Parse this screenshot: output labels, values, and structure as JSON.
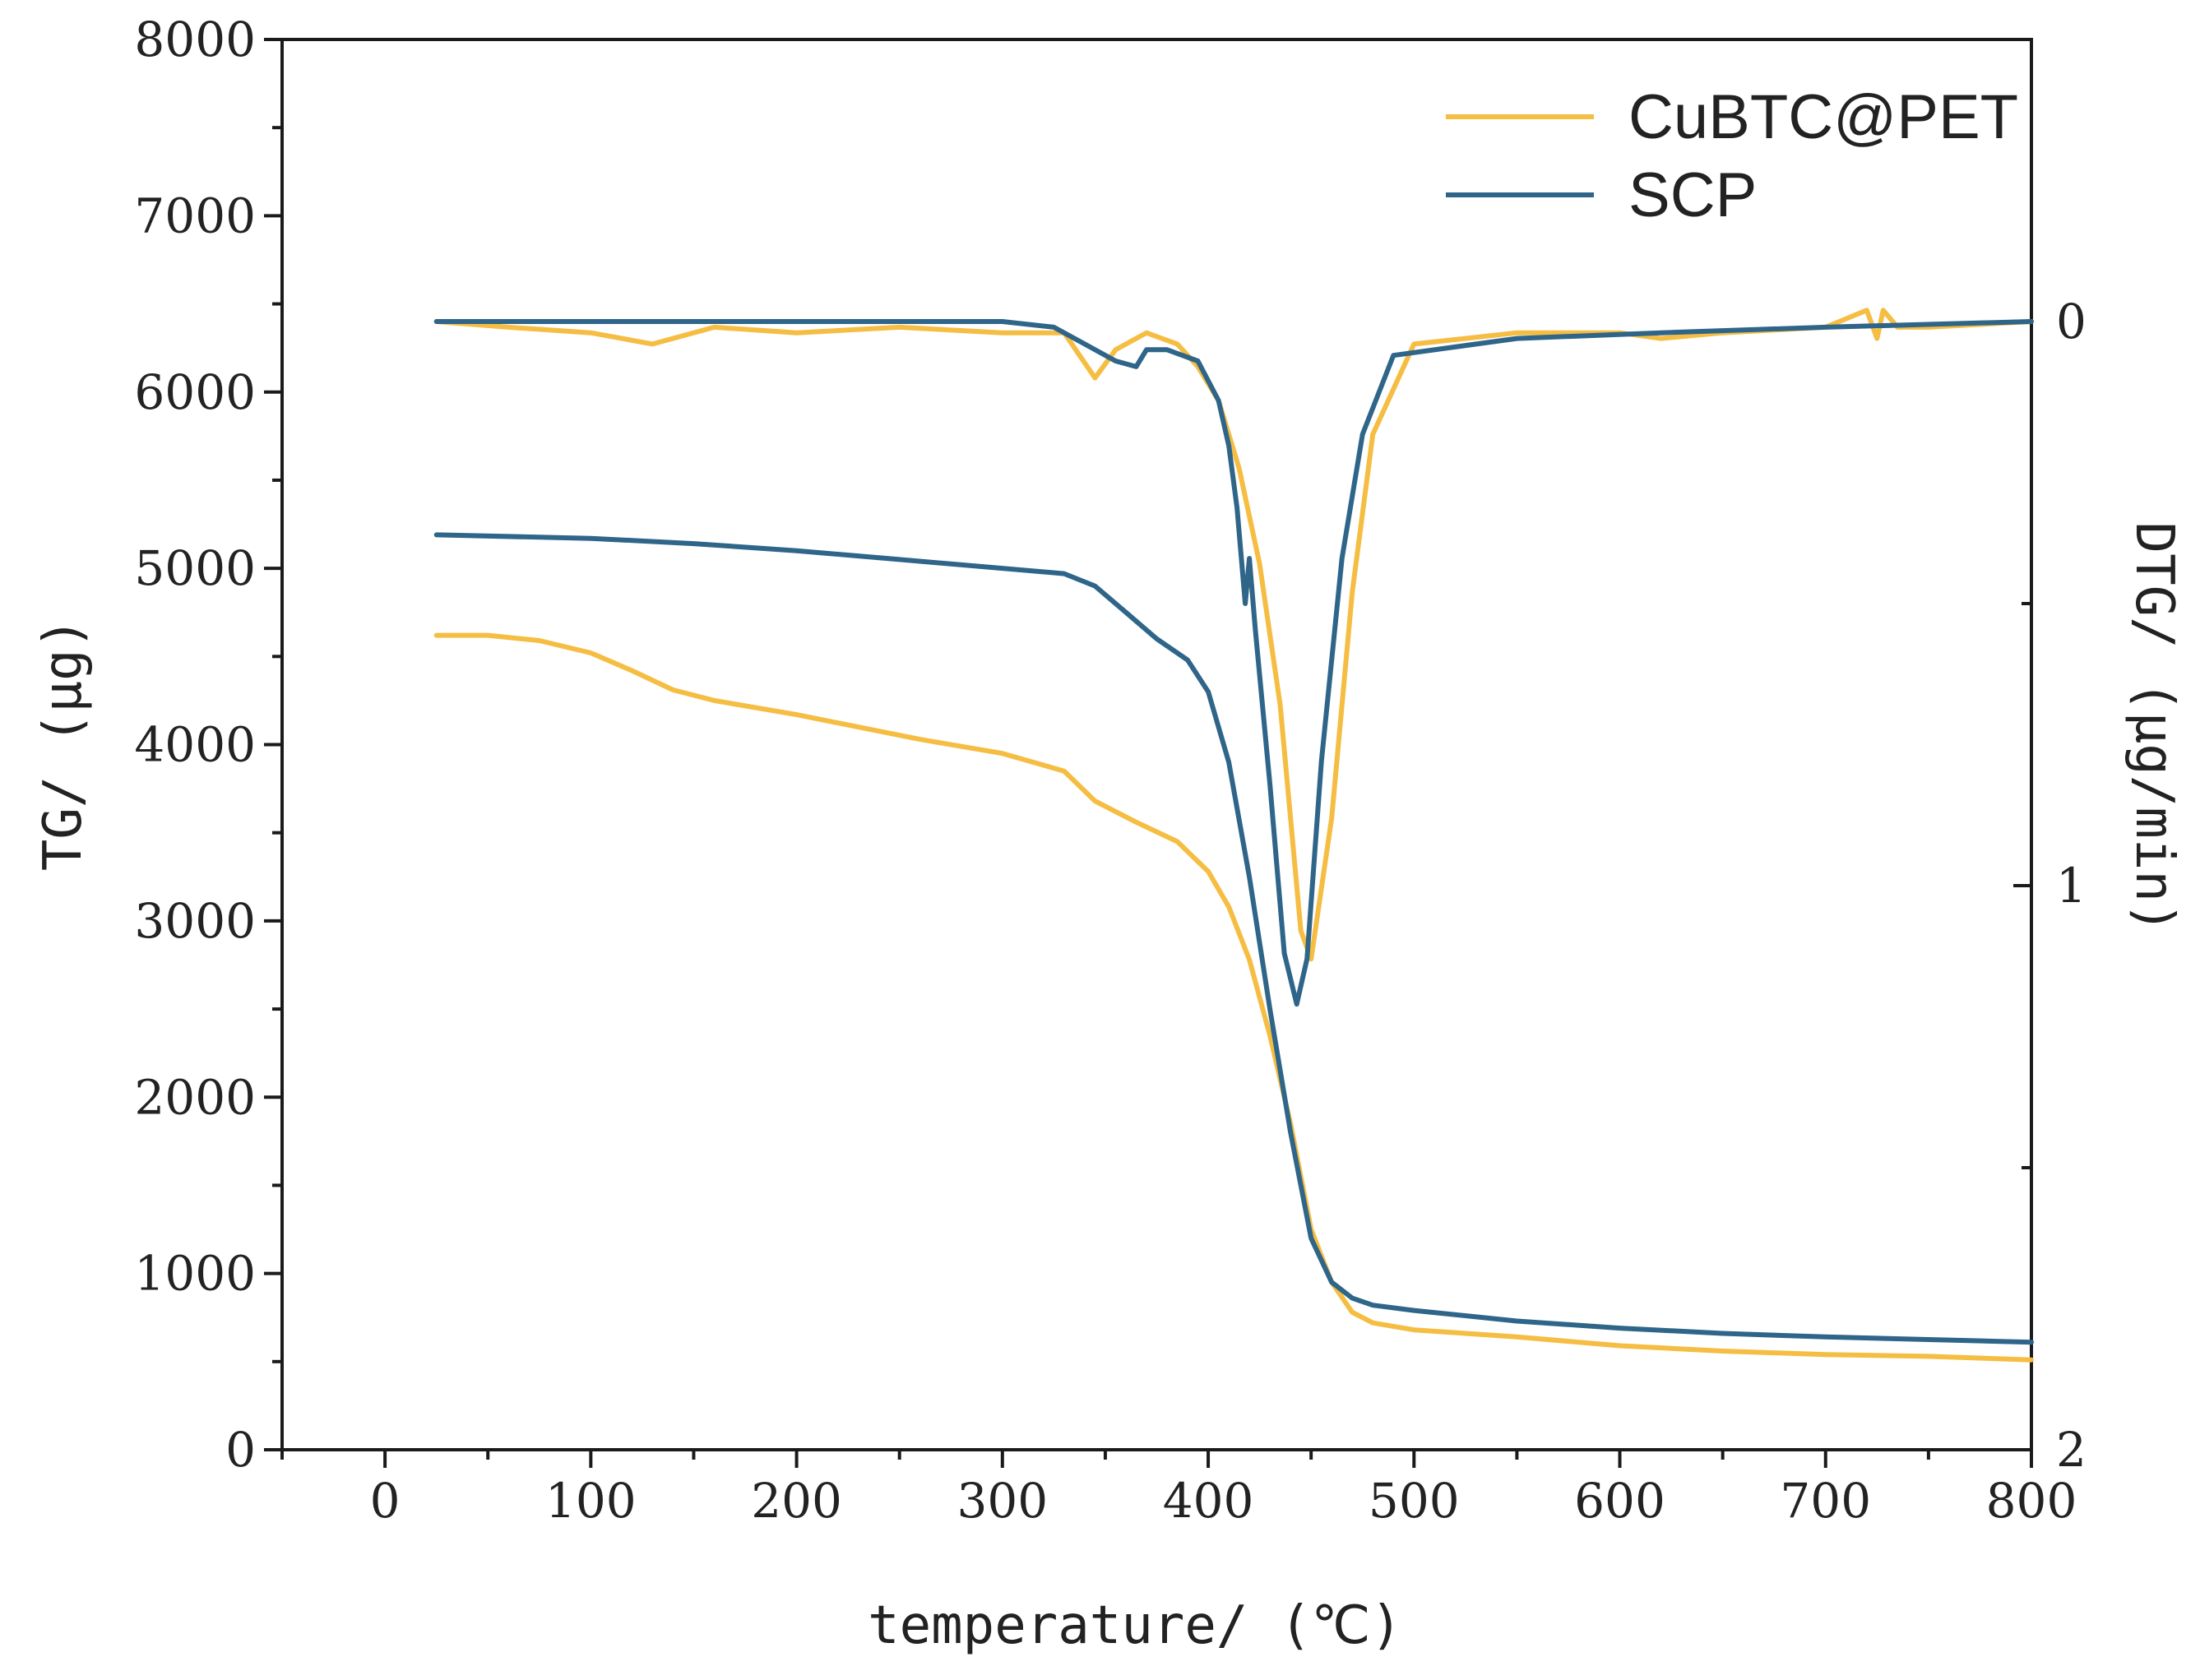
{
  "chart_data": {
    "type": "line",
    "title": "",
    "xlabel": "temperature/ (℃)",
    "ylabel_left": "TG/ (μg)",
    "ylabel_right": "DTG/ (μg/min)",
    "xlim": [
      -50,
      800
    ],
    "ylim_left": [
      0,
      8000
    ],
    "ylim_right_inverted": [
      2,
      -0.5
    ],
    "x_ticks": [
      0,
      100,
      200,
      300,
      400,
      500,
      600,
      700,
      800
    ],
    "x_tick_labels": [
      "0",
      "100",
      "200",
      "300",
      "400",
      "500",
      "600",
      "700",
      "800"
    ],
    "y_left_ticks": [
      0,
      1000,
      2000,
      3000,
      4000,
      5000,
      6000,
      7000,
      8000
    ],
    "y_left_tick_labels": [
      "0",
      "1000",
      "2000",
      "3000",
      "4000",
      "5000",
      "6000",
      "7000",
      "8000"
    ],
    "y_right_ticks": [
      0,
      1,
      2
    ],
    "y_right_tick_labels": [
      "0",
      "1",
      "2"
    ],
    "grid": false,
    "legend_position": "top-right",
    "colors": {
      "CuBTC@PET": "#f5bd42",
      "SCP": "#2e6589"
    },
    "series": [
      {
        "name": "CuBTC@PET",
        "kind": "TG",
        "axis": "left",
        "x": [
          25,
          50,
          75,
          100,
          120,
          140,
          160,
          200,
          260,
          300,
          330,
          345,
          365,
          385,
          400,
          410,
          420,
          430,
          440,
          450,
          460,
          470,
          480,
          500,
          550,
          600,
          650,
          700,
          750,
          800
        ],
        "y": [
          4620,
          4620,
          4590,
          4520,
          4420,
          4310,
          4250,
          4170,
          4030,
          3950,
          3850,
          3680,
          3560,
          3450,
          3280,
          3080,
          2780,
          2350,
          1850,
          1250,
          950,
          780,
          720,
          680,
          640,
          590,
          560,
          540,
          530,
          510
        ]
      },
      {
        "name": "SCP",
        "kind": "TG",
        "axis": "left",
        "x": [
          25,
          100,
          150,
          200,
          250,
          300,
          330,
          345,
          360,
          375,
          390,
          400,
          410,
          420,
          430,
          440,
          450,
          460,
          470,
          480,
          500,
          550,
          600,
          650,
          700,
          750,
          800
        ],
        "y": [
          5190,
          5170,
          5140,
          5100,
          5050,
          5000,
          4970,
          4900,
          4750,
          4600,
          4480,
          4300,
          3900,
          3250,
          2500,
          1800,
          1200,
          950,
          860,
          820,
          790,
          730,
          690,
          660,
          640,
          625,
          610
        ]
      },
      {
        "name": "CuBTC@PET",
        "kind": "DTG",
        "axis": "right",
        "x": [
          25,
          60,
          100,
          130,
          160,
          200,
          250,
          300,
          330,
          345,
          355,
          370,
          385,
          395,
          405,
          415,
          425,
          435,
          445,
          450,
          460,
          470,
          480,
          500,
          550,
          600,
          620,
          650,
          700,
          720,
          725,
          728,
          735,
          750,
          800
        ],
        "y": [
          0,
          0.01,
          0.02,
          0.04,
          0.01,
          0.02,
          0.01,
          0.02,
          0.02,
          0.1,
          0.05,
          0.02,
          0.04,
          0.08,
          0.14,
          0.26,
          0.43,
          0.68,
          1.08,
          1.13,
          0.88,
          0.48,
          0.2,
          0.04,
          0.02,
          0.02,
          0.03,
          0.02,
          0.01,
          -0.02,
          0.03,
          -0.02,
          0.01,
          0.01,
          0
        ]
      },
      {
        "name": "SCP",
        "kind": "DTG",
        "axis": "right",
        "x": [
          25,
          100,
          200,
          300,
          325,
          340,
          355,
          365,
          370,
          380,
          395,
          405,
          410,
          414,
          418,
          420,
          423,
          430,
          437,
          443,
          448,
          455,
          465,
          475,
          490,
          550,
          620,
          700,
          800
        ],
        "y": [
          0,
          0,
          0,
          0,
          0.01,
          0.04,
          0.07,
          0.08,
          0.05,
          0.05,
          0.07,
          0.14,
          0.22,
          0.33,
          0.5,
          0.42,
          0.55,
          0.82,
          1.12,
          1.21,
          1.13,
          0.78,
          0.42,
          0.2,
          0.06,
          0.03,
          0.02,
          0.01,
          0
        ]
      }
    ]
  }
}
